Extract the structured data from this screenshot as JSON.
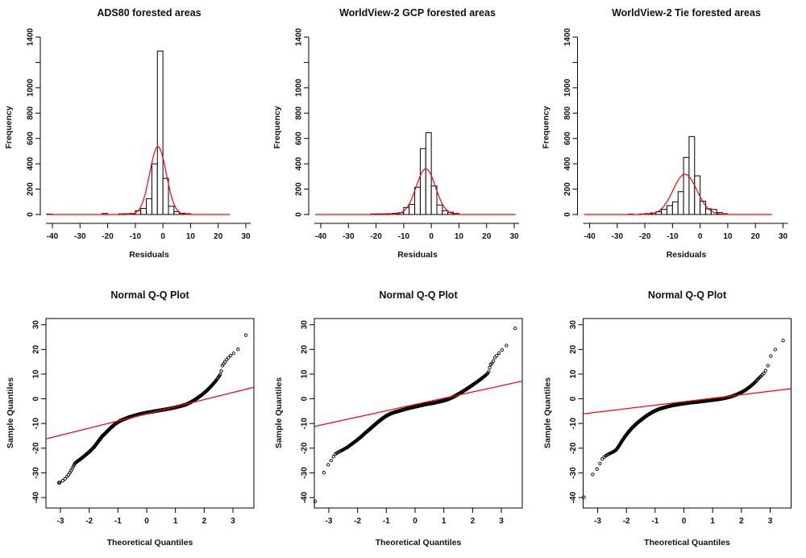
{
  "page": {
    "background": "#ffffff"
  },
  "chart_data": [
    {
      "type": "histogram",
      "title": "ADS80 forested areas",
      "xlabel": "Residuals",
      "ylabel": "Frequency",
      "xlim": [
        -44,
        32
      ],
      "ylim": [
        0,
        1400
      ],
      "x_ticks": [
        -40,
        -30,
        -20,
        -10,
        0,
        10,
        20,
        30
      ],
      "y_ticks": [
        0,
        200,
        400,
        600,
        800,
        1000,
        1200,
        1400
      ],
      "y_tick_labels": [
        "0",
        "200",
        "400",
        "600",
        "800",
        "1000",
        "",
        "1400"
      ],
      "grid": false,
      "bin_width": 2,
      "bins": [
        [
          -42,
          3
        ],
        [
          -22,
          8
        ],
        [
          -16,
          5
        ],
        [
          -14,
          6
        ],
        [
          -12,
          8
        ],
        [
          -10,
          30
        ],
        [
          -8,
          48
        ],
        [
          -6,
          125
        ],
        [
          -4,
          400
        ],
        [
          -2,
          1290
        ],
        [
          0,
          285
        ],
        [
          2,
          65
        ],
        [
          4,
          22
        ],
        [
          6,
          10
        ],
        [
          8,
          6
        ]
      ],
      "curve": {
        "shape": "normal",
        "mean": -1.8,
        "sd": 3.0,
        "peak": 535,
        "x_from": -41.5,
        "x_to": 24.3
      },
      "colors": {
        "curve": "#ff0000",
        "bar_fill": "#ffffff",
        "bar_stroke": "#000000"
      }
    },
    {
      "type": "histogram",
      "title": "WorldView-2 GCP forested areas",
      "xlabel": "Residuals",
      "ylabel": "Frequency",
      "xlim": [
        -44,
        32
      ],
      "ylim": [
        0,
        1400
      ],
      "x_ticks": [
        -40,
        -30,
        -20,
        -10,
        0,
        10,
        20,
        30
      ],
      "y_ticks": [
        0,
        200,
        400,
        600,
        800,
        1000,
        1200,
        1400
      ],
      "y_tick_labels": [
        "0",
        "200",
        "400",
        "600",
        "800",
        "1000",
        "",
        "1400"
      ],
      "grid": false,
      "bin_width": 2,
      "bins": [
        [
          -22,
          4
        ],
        [
          -20,
          5
        ],
        [
          -18,
          5
        ],
        [
          -16,
          6
        ],
        [
          -14,
          9
        ],
        [
          -12,
          14
        ],
        [
          -10,
          55
        ],
        [
          -8,
          80
        ],
        [
          -6,
          215
        ],
        [
          -4,
          520
        ],
        [
          -2,
          645
        ],
        [
          0,
          225
        ],
        [
          2,
          75
        ],
        [
          4,
          30
        ],
        [
          6,
          18
        ],
        [
          8,
          8
        ]
      ],
      "curve": {
        "shape": "normal",
        "mean": -2.0,
        "sd": 3.5,
        "peak": 360,
        "x_from": -42.0,
        "x_to": 30.5
      },
      "colors": {
        "curve": "#ff0000",
        "bar_fill": "#ffffff",
        "bar_stroke": "#000000"
      }
    },
    {
      "type": "histogram",
      "title": "WorldView-2 Tie forested areas",
      "xlabel": "Residuals",
      "ylabel": "Frequency",
      "xlim": [
        -44,
        32
      ],
      "ylim": [
        0,
        1400
      ],
      "x_ticks": [
        -40,
        -30,
        -20,
        -10,
        0,
        10,
        20,
        30
      ],
      "y_ticks": [
        0,
        200,
        400,
        600,
        800,
        1000,
        1200,
        1400
      ],
      "y_tick_labels": [
        "0",
        "200",
        "400",
        "600",
        "800",
        "1000",
        "",
        "1400"
      ],
      "grid": false,
      "bin_width": 2,
      "bins": [
        [
          -26,
          3
        ],
        [
          -22,
          4
        ],
        [
          -20,
          7
        ],
        [
          -18,
          12
        ],
        [
          -16,
          22
        ],
        [
          -14,
          40
        ],
        [
          -12,
          70
        ],
        [
          -10,
          100
        ],
        [
          -8,
          180
        ],
        [
          -6,
          450
        ],
        [
          -4,
          615
        ],
        [
          -2,
          305
        ],
        [
          0,
          105
        ],
        [
          2,
          45
        ],
        [
          4,
          40
        ],
        [
          6,
          15
        ],
        [
          8,
          6
        ]
      ],
      "curve": {
        "shape": "normal",
        "mean": -5.5,
        "sd": 4.3,
        "peak": 318,
        "x_from": -42.0,
        "x_to": 26.0
      },
      "colors": {
        "curve": "#ff0000",
        "bar_fill": "#ffffff",
        "bar_stroke": "#000000"
      }
    },
    {
      "type": "qq",
      "title": "Normal Q-Q Plot",
      "xlabel": "Theoretical Quantiles",
      "ylabel": "Sample Quantiles",
      "xlim": [
        -3.5,
        3.73
      ],
      "ylim": [
        -45,
        32.6
      ],
      "x_ticks": [
        -3,
        -2,
        -1,
        0,
        1,
        2,
        3
      ],
      "y_ticks": [
        -40,
        -30,
        -20,
        -10,
        0,
        10,
        20,
        30
      ],
      "grid": false,
      "n_points": 2000,
      "curve_points": [
        [
          -3.05,
          -34
        ],
        [
          -2.95,
          -33.5
        ],
        [
          -2.85,
          -32.5
        ],
        [
          -2.7,
          -30.5
        ],
        [
          -2.6,
          -28.5
        ],
        [
          -2.5,
          -26.2
        ],
        [
          -2.4,
          -25.2
        ],
        [
          -2.3,
          -24.4
        ],
        [
          -2.15,
          -23
        ],
        [
          -2.0,
          -21.5
        ],
        [
          -1.85,
          -19.8
        ],
        [
          -1.7,
          -17.5
        ],
        [
          -1.55,
          -15.2
        ],
        [
          -1.4,
          -13.5
        ],
        [
          -1.25,
          -11.8
        ],
        [
          -1.1,
          -10.2
        ],
        [
          -0.95,
          -9.1
        ],
        [
          -0.8,
          -8.3
        ],
        [
          -0.6,
          -7.4
        ],
        [
          -0.4,
          -6.7
        ],
        [
          -0.2,
          -6.1
        ],
        [
          0,
          -5.6
        ],
        [
          0.25,
          -5.1
        ],
        [
          0.5,
          -4.6
        ],
        [
          0.75,
          -4.1
        ],
        [
          1.0,
          -3.5
        ],
        [
          1.2,
          -2.9
        ],
        [
          1.35,
          -2.4
        ],
        [
          1.5,
          -1.6
        ],
        [
          1.65,
          -0.6
        ],
        [
          1.8,
          0.6
        ],
        [
          1.95,
          1.9
        ],
        [
          2.1,
          3.4
        ],
        [
          2.25,
          5.2
        ],
        [
          2.4,
          7.2
        ],
        [
          2.5,
          8.8
        ],
        [
          2.58,
          10.2
        ],
        [
          2.62,
          13.2
        ],
        [
          2.7,
          14.6
        ],
        [
          2.8,
          16.2
        ],
        [
          2.9,
          17.3
        ],
        [
          3.0,
          18.2
        ],
        [
          3.15,
          19.8
        ],
        [
          3.25,
          20.8
        ],
        [
          3.45,
          25.8
        ]
      ],
      "line": {
        "slope": 2.89,
        "intercept": -6.1
      },
      "colors": {
        "line": "#ff0000",
        "point": "#000000"
      }
    },
    {
      "type": "qq",
      "title": "Normal Q-Q Plot",
      "xlabel": "Theoretical Quantiles",
      "ylabel": "Sample Quantiles",
      "xlim": [
        -3.5,
        3.73
      ],
      "ylim": [
        -45,
        32.6
      ],
      "x_ticks": [
        -3,
        -2,
        -1,
        0,
        1,
        2,
        3
      ],
      "y_ticks": [
        -40,
        -30,
        -20,
        -10,
        0,
        10,
        20,
        30
      ],
      "grid": false,
      "n_points": 2000,
      "curve_points": [
        [
          -3.5,
          -42.3
        ],
        [
          -3.15,
          -29
        ],
        [
          -3.0,
          -26.3
        ],
        [
          -2.95,
          -25.6
        ],
        [
          -2.8,
          -22.6
        ],
        [
          -2.7,
          -21.8
        ],
        [
          -2.6,
          -21.2
        ],
        [
          -2.5,
          -20.6
        ],
        [
          -2.35,
          -19.6
        ],
        [
          -2.2,
          -18.3
        ],
        [
          -2.05,
          -17
        ],
        [
          -1.9,
          -15.6
        ],
        [
          -1.75,
          -14
        ],
        [
          -1.6,
          -12.5
        ],
        [
          -1.45,
          -11
        ],
        [
          -1.3,
          -9.5
        ],
        [
          -1.15,
          -8.1
        ],
        [
          -1.0,
          -6.9
        ],
        [
          -0.85,
          -6
        ],
        [
          -0.7,
          -5.4
        ],
        [
          -0.55,
          -4.9
        ],
        [
          -0.4,
          -4.4
        ],
        [
          -0.25,
          -3.9
        ],
        [
          -0.1,
          -3.5
        ],
        [
          0.05,
          -3.1
        ],
        [
          0.2,
          -2.7
        ],
        [
          0.35,
          -2.3
        ],
        [
          0.5,
          -2
        ],
        [
          0.65,
          -1.7
        ],
        [
          0.8,
          -1.3
        ],
        [
          0.95,
          -0.9
        ],
        [
          1.1,
          -0.4
        ],
        [
          1.25,
          0.3
        ],
        [
          1.4,
          1.2
        ],
        [
          1.55,
          2.2
        ],
        [
          1.7,
          3.3
        ],
        [
          1.85,
          4.4
        ],
        [
          2.0,
          5.6
        ],
        [
          2.15,
          6.8
        ],
        [
          2.3,
          8.1
        ],
        [
          2.45,
          9.5
        ],
        [
          2.55,
          10.6
        ],
        [
          2.62,
          13.8
        ],
        [
          2.7,
          14.7
        ],
        [
          2.78,
          16.8
        ],
        [
          2.85,
          17.6
        ],
        [
          3.0,
          19.6
        ],
        [
          3.1,
          20.3
        ],
        [
          3.2,
          22
        ],
        [
          3.5,
          29
        ]
      ],
      "line": {
        "slope": 2.54,
        "intercept": -2.3
      },
      "colors": {
        "line": "#ff0000",
        "point": "#000000"
      }
    },
    {
      "type": "qq",
      "title": "Normal Q-Q Plot",
      "xlabel": "Theoretical Quantiles",
      "ylabel": "Sample Quantiles",
      "xlim": [
        -3.5,
        3.73
      ],
      "ylim": [
        -45,
        32.6
      ],
      "x_ticks": [
        -3,
        -2,
        -1,
        0,
        1,
        2,
        3
      ],
      "y_ticks": [
        -40,
        -30,
        -20,
        -10,
        0,
        10,
        20,
        30
      ],
      "grid": false,
      "n_points": 2000,
      "curve_points": [
        [
          -3.5,
          -40.5
        ],
        [
          -3.2,
          -31
        ],
        [
          -3.05,
          -29
        ],
        [
          -2.95,
          -27
        ],
        [
          -2.85,
          -24.5
        ],
        [
          -2.75,
          -23.3
        ],
        [
          -2.65,
          -22.6
        ],
        [
          -2.55,
          -22
        ],
        [
          -2.45,
          -21.4
        ],
        [
          -2.35,
          -20.6
        ],
        [
          -2.25,
          -18.9
        ],
        [
          -2.15,
          -17
        ],
        [
          -2.05,
          -15.3
        ],
        [
          -1.95,
          -13.8
        ],
        [
          -1.85,
          -12.4
        ],
        [
          -1.75,
          -11.2
        ],
        [
          -1.65,
          -10.1
        ],
        [
          -1.55,
          -9.1
        ],
        [
          -1.45,
          -8.2
        ],
        [
          -1.35,
          -7.3
        ],
        [
          -1.25,
          -6.5
        ],
        [
          -1.15,
          -5.8
        ],
        [
          -1.05,
          -5.1
        ],
        [
          -0.95,
          -4.6
        ],
        [
          -0.85,
          -4.1
        ],
        [
          -0.7,
          -3.6
        ],
        [
          -0.55,
          -3.1
        ],
        [
          -0.4,
          -2.7
        ],
        [
          -0.25,
          -2.4
        ],
        [
          -0.1,
          -2.1
        ],
        [
          0.05,
          -1.85
        ],
        [
          0.2,
          -1.6
        ],
        [
          0.4,
          -1.35
        ],
        [
          0.6,
          -1.1
        ],
        [
          0.8,
          -0.8
        ],
        [
          1.0,
          -0.5
        ],
        [
          1.2,
          -0.2
        ],
        [
          1.4,
          0.2
        ],
        [
          1.55,
          0.6
        ],
        [
          1.7,
          1.1
        ],
        [
          1.85,
          1.8
        ],
        [
          2.0,
          2.6
        ],
        [
          2.15,
          3.6
        ],
        [
          2.3,
          4.9
        ],
        [
          2.45,
          6.4
        ],
        [
          2.6,
          8.3
        ],
        [
          2.7,
          9.4
        ],
        [
          2.8,
          10.6
        ],
        [
          2.9,
          12.5
        ],
        [
          3.0,
          17
        ],
        [
          3.1,
          18.3
        ],
        [
          3.25,
          21.6
        ],
        [
          3.45,
          23.6
        ]
      ],
      "line": {
        "slope": 1.41,
        "intercept": -1.16
      },
      "colors": {
        "line": "#ff0000",
        "point": "#000000"
      }
    }
  ]
}
